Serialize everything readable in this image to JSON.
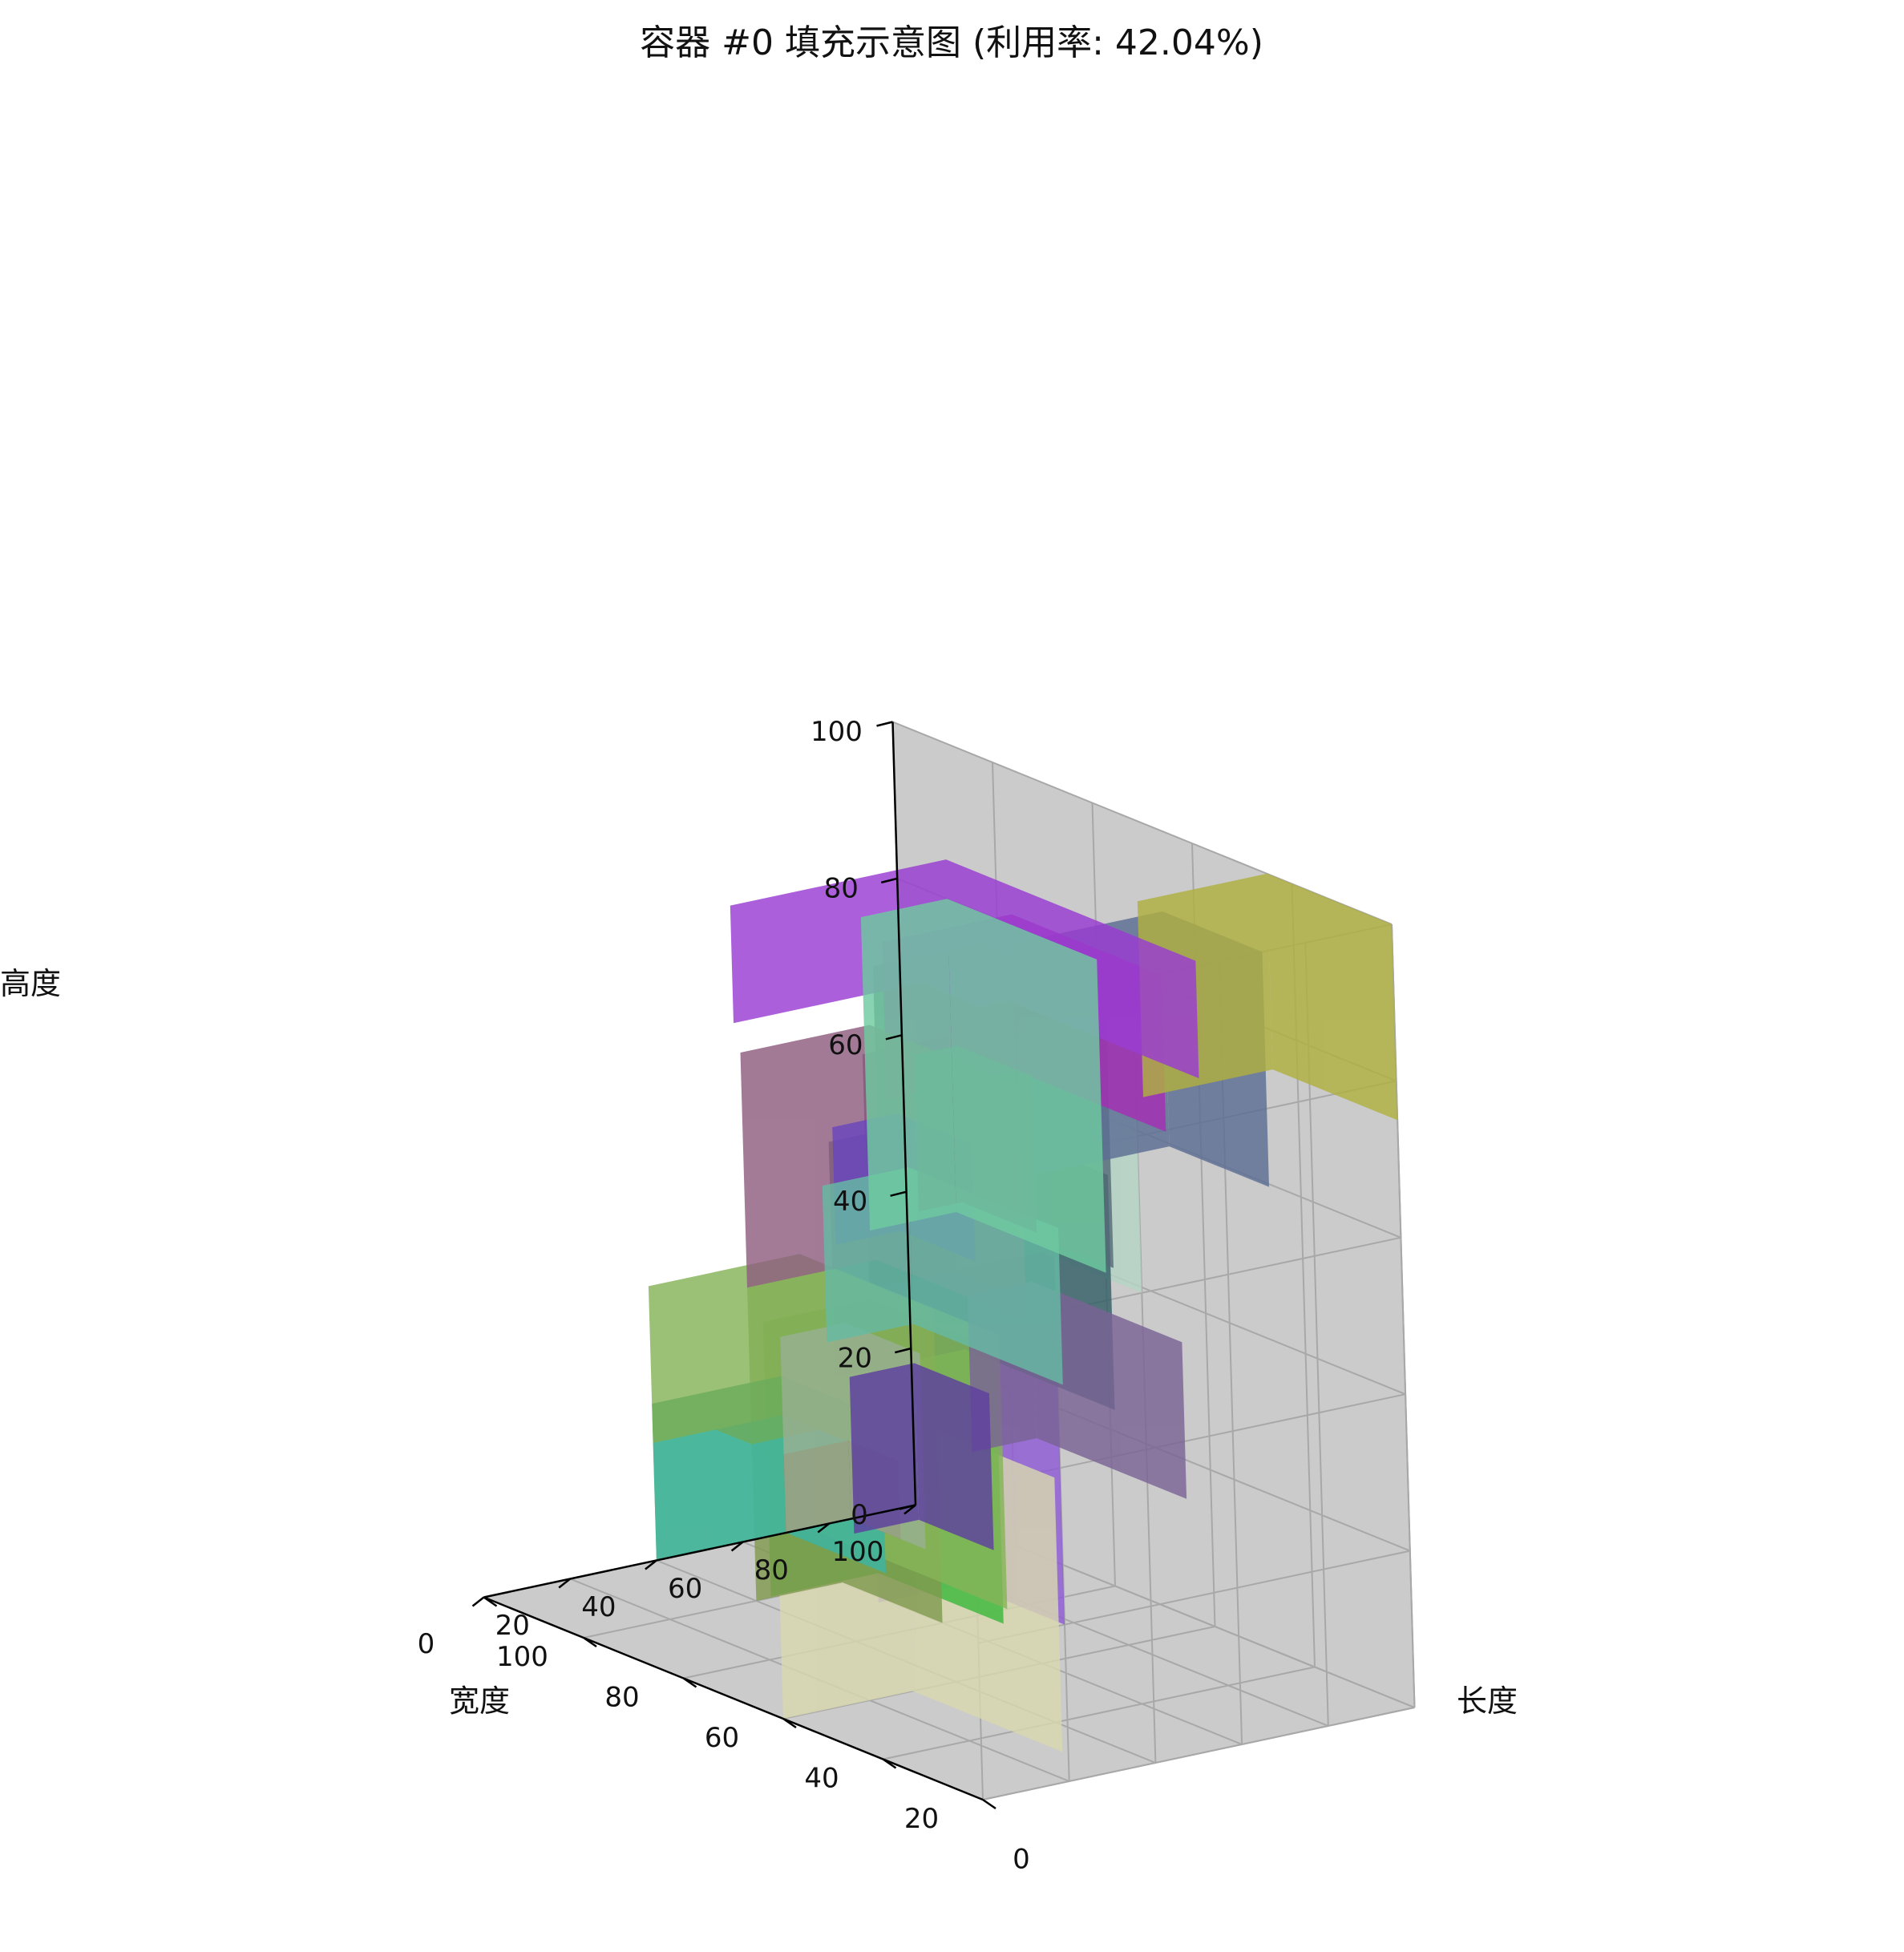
{
  "chart_data": {
    "type": "3d-box-packing",
    "title": "容器 #0 填充示意图 (利用率: 42.04%)",
    "xlabel": "长度",
    "ylabel": "宽度",
    "zlabel": "高度",
    "xlim": [
      0,
      100
    ],
    "ylim": [
      0,
      100
    ],
    "zlim": [
      0,
      100
    ],
    "x_ticks": [
      "0",
      "20",
      "40",
      "60",
      "80",
      "100"
    ],
    "y_ticks": [
      "0",
      "20",
      "40",
      "60",
      "80",
      "100"
    ],
    "z_ticks": [
      "0",
      "20",
      "40",
      "60",
      "80",
      "100"
    ],
    "grid": true,
    "pane_color": "#cbcbcb",
    "boxes": [
      {
        "name": "box-light-yellow",
        "color": "#d8d8b0",
        "x": [
          0,
          30
        ],
        "y": [
          10,
          40
        ],
        "z": [
          0,
          35
        ]
      },
      {
        "name": "box-green-1",
        "color": "#3cb83c",
        "x": [
          15,
          40
        ],
        "y": [
          30,
          55
        ],
        "z": [
          10,
          45
        ]
      },
      {
        "name": "box-purple-back",
        "color": "#8e5ad4",
        "x": [
          0,
          20
        ],
        "y": [
          0,
          20
        ],
        "z": [
          20,
          60
        ]
      },
      {
        "name": "box-dark-purple",
        "color": "#5a3f6e",
        "x": [
          0,
          20
        ],
        "y": [
          0,
          20
        ],
        "z": [
          60,
          90
        ]
      },
      {
        "name": "box-teal-dark",
        "color": "#345f66",
        "x": [
          20,
          50
        ],
        "y": [
          15,
          45
        ],
        "z": [
          40,
          70
        ]
      },
      {
        "name": "box-light-mint",
        "color": "#b5d4c5",
        "x": [
          20,
          40
        ],
        "y": [
          0,
          20
        ],
        "z": [
          60,
          90
        ]
      },
      {
        "name": "box-slate-2",
        "color": "#556b77",
        "x": [
          20,
          45
        ],
        "y": [
          10,
          35
        ],
        "z": [
          60,
          95
        ]
      },
      {
        "name": "box-slate-blue",
        "color": "#5d6e94",
        "x": [
          35,
          70
        ],
        "y": [
          0,
          20
        ],
        "z": [
          70,
          100
        ]
      },
      {
        "name": "box-olive",
        "color": "#b0b040",
        "x": [
          70,
          100
        ],
        "y": [
          0,
          25
        ],
        "z": [
          75,
          100
        ]
      },
      {
        "name": "box-magenta",
        "color": "#a52eb5",
        "x": [
          45,
          75
        ],
        "y": [
          25,
          55
        ],
        "z": [
          70,
          90
        ]
      },
      {
        "name": "box-violet",
        "color": "#9a3cd2",
        "x": [
          50,
          100
        ],
        "y": [
          40,
          90
        ],
        "z": [
          70,
          85
        ]
      },
      {
        "name": "box-mauve",
        "color": "#8f5e80",
        "x": [
          40,
          70
        ],
        "y": [
          50,
          80
        ],
        "z": [
          40,
          70
        ]
      },
      {
        "name": "box-indigo",
        "color": "#6a46be",
        "x": [
          55,
          70
        ],
        "y": [
          60,
          75
        ],
        "z": [
          45,
          60
        ]
      },
      {
        "name": "box-mint",
        "color": "#6fcaa0",
        "x": [
          80,
          100
        ],
        "y": [
          60,
          90
        ],
        "z": [
          40,
          80
        ]
      },
      {
        "name": "box-grey-blue",
        "color": "#676a8c",
        "x": [
          80,
          90
        ],
        "y": [
          65,
          80
        ],
        "z": [
          45,
          65
        ]
      },
      {
        "name": "box-cyan-mint",
        "color": "#66baa4",
        "x": [
          75,
          95
        ],
        "y": [
          65,
          95
        ],
        "z": [
          25,
          45
        ]
      },
      {
        "name": "box-muted-purple",
        "color": "#7a6496",
        "x": [
          85,
          100
        ],
        "y": [
          45,
          75
        ],
        "z": [
          15,
          35
        ]
      },
      {
        "name": "box-deep-purple",
        "color": "#5e3fa0",
        "x": [
          80,
          95
        ],
        "y": [
          80,
          95
        ],
        "z": [
          0,
          20
        ]
      },
      {
        "name": "box-sage",
        "color": "#98b092",
        "x": [
          70,
          85
        ],
        "y": [
          85,
          100
        ],
        "z": [
          0,
          25
        ]
      },
      {
        "name": "box-brown",
        "color": "#8a5a36",
        "x": [
          70,
          85
        ],
        "y": [
          90,
          100
        ],
        "z": [
          0,
          10
        ]
      },
      {
        "name": "box-olive-green",
        "color": "#809a4e",
        "x": [
          40,
          60
        ],
        "y": [
          60,
          80
        ],
        "z": [
          0,
          40
        ]
      },
      {
        "name": "box-yellow-green",
        "color": "#86b458",
        "x": [
          40,
          75
        ],
        "y": [
          60,
          100
        ],
        "z": [
          0,
          35
        ]
      },
      {
        "name": "box-teal",
        "color": "#3ab5a5",
        "x": [
          40,
          70
        ],
        "y": [
          80,
          100
        ],
        "z": [
          0,
          15
        ]
      },
      {
        "name": "box-green-front",
        "color": "#6cad5c",
        "x": [
          40,
          70
        ],
        "y": [
          80,
          100
        ],
        "z": [
          15,
          20
        ]
      }
    ]
  }
}
